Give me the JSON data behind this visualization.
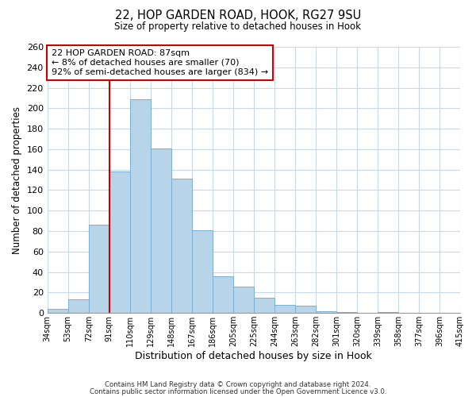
{
  "title": "22, HOP GARDEN ROAD, HOOK, RG27 9SU",
  "subtitle": "Size of property relative to detached houses in Hook",
  "xlabel": "Distribution of detached houses by size in Hook",
  "ylabel": "Number of detached properties",
  "bar_values": [
    4,
    13,
    86,
    138,
    209,
    161,
    131,
    81,
    36,
    26,
    15,
    8,
    7,
    2,
    1,
    0,
    1
  ],
  "bin_labels": [
    "34sqm",
    "53sqm",
    "72sqm",
    "91sqm",
    "110sqm",
    "129sqm",
    "148sqm",
    "167sqm",
    "186sqm",
    "205sqm",
    "225sqm",
    "244sqm",
    "263sqm",
    "282sqm",
    "301sqm",
    "320sqm",
    "339sqm",
    "358sqm",
    "377sqm",
    "396sqm",
    "415sqm"
  ],
  "bar_color": "#b8d4e8",
  "bar_edge_color": "#7aafd4",
  "vline_x_label_idx": 3,
  "vline_color": "#cc0000",
  "annotation_text": "22 HOP GARDEN ROAD: 87sqm\n← 8% of detached houses are smaller (70)\n92% of semi-detached houses are larger (834) →",
  "annotation_box_color": "#ffffff",
  "annotation_box_edge_color": "#cc0000",
  "ylim": [
    0,
    260
  ],
  "yticks": [
    0,
    20,
    40,
    60,
    80,
    100,
    120,
    140,
    160,
    180,
    200,
    220,
    240,
    260
  ],
  "footer_line1": "Contains HM Land Registry data © Crown copyright and database right 2024.",
  "footer_line2": "Contains public sector information licensed under the Open Government Licence v3.0.",
  "background_color": "#ffffff",
  "grid_color": "#c8d8e8"
}
